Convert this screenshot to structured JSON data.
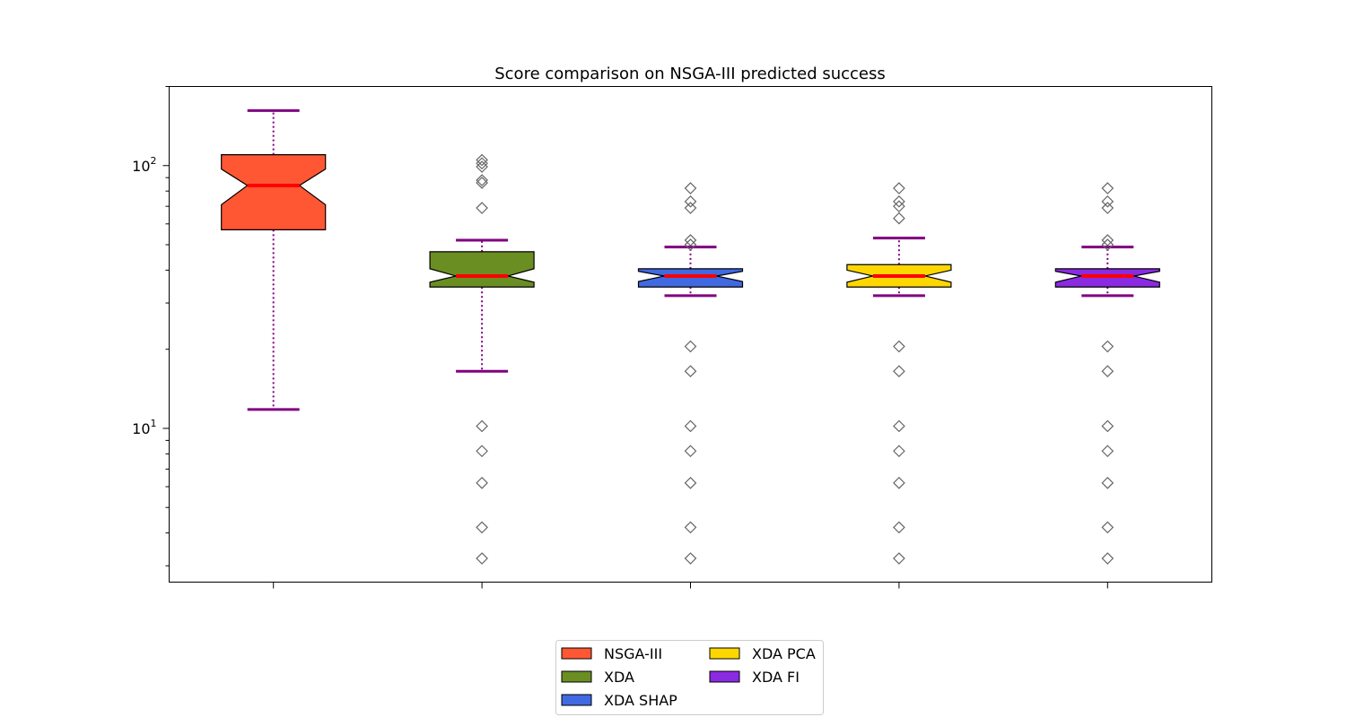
{
  "chart_data": {
    "type": "boxplot",
    "title": "Score comparison on NSGA-III predicted success",
    "xlabel": "",
    "ylabel": "",
    "y_scale": "log",
    "ylim": [
      2.6,
      200
    ],
    "y_ticks": [
      {
        "value": 10,
        "base": "10",
        "exp": "1"
      },
      {
        "value": 100,
        "base": "10",
        "exp": "2"
      }
    ],
    "grid": false,
    "legend_position": "bottom-center",
    "notched": true,
    "whisker_color": "#800080",
    "median_color": "#ff0000",
    "series": [
      {
        "name": "NSGA-III",
        "color": "#ff5733",
        "q1": 57,
        "median": 84,
        "q3": 110,
        "notch_low": 71,
        "notch_high": 97,
        "whisker_low": 11.8,
        "whisker_high": 162,
        "outliers": []
      },
      {
        "name": "XDA",
        "color": "#6b8e23",
        "q1": 34.5,
        "median": 38,
        "q3": 47,
        "notch_low": 36,
        "notch_high": 40.5,
        "whisker_low": 16.5,
        "whisker_high": 52,
        "outliers": [
          105,
          102,
          99,
          88,
          86,
          69,
          10.2,
          8.2,
          6.2,
          4.2,
          3.2
        ]
      },
      {
        "name": "XDA SHAP",
        "color": "#4169e1",
        "q1": 34.5,
        "median": 38,
        "q3": 40.5,
        "notch_low": 36.2,
        "notch_high": 39.6,
        "whisker_low": 32,
        "whisker_high": 49,
        "outliers": [
          82,
          73,
          69,
          52,
          50,
          20.5,
          16.5,
          10.2,
          8.2,
          6.2,
          4.2,
          3.2
        ]
      },
      {
        "name": "XDA PCA",
        "color": "#ffd700",
        "q1": 34.5,
        "median": 38,
        "q3": 42,
        "notch_low": 36,
        "notch_high": 40,
        "whisker_low": 32,
        "whisker_high": 53,
        "outliers": [
          82,
          73,
          70,
          63,
          20.5,
          16.5,
          10.2,
          8.2,
          6.2,
          4.2,
          3.2
        ]
      },
      {
        "name": "XDA FI",
        "color": "#8a2be2",
        "q1": 34.5,
        "median": 38,
        "q3": 40.5,
        "notch_low": 36,
        "notch_high": 39.6,
        "whisker_low": 32,
        "whisker_high": 49,
        "outliers": [
          82,
          73,
          69,
          52,
          50,
          20.5,
          16.5,
          10.2,
          8.2,
          6.2,
          4.2,
          3.2
        ]
      }
    ]
  }
}
